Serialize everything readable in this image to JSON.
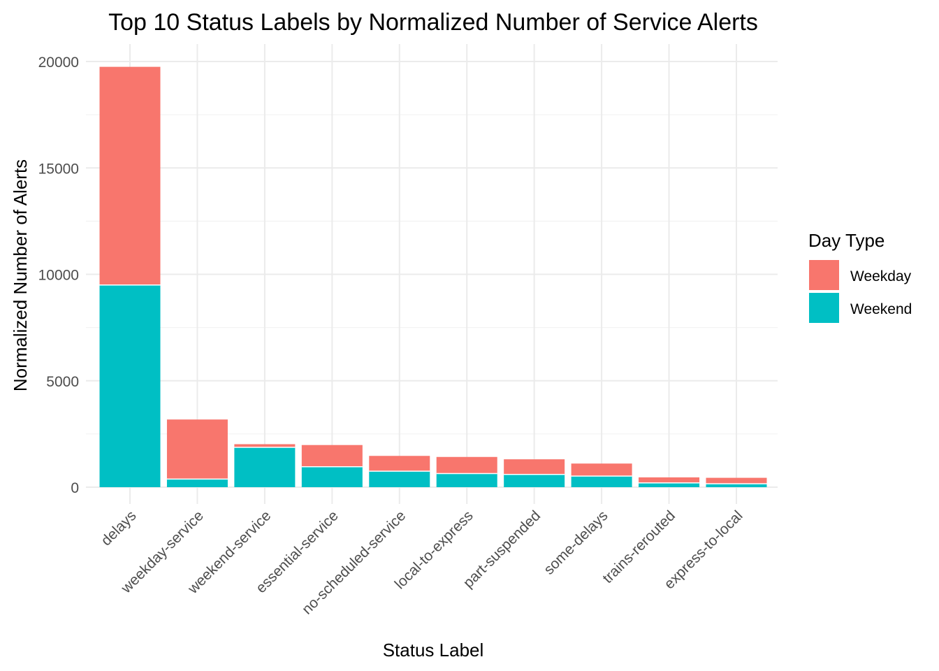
{
  "chart_data": {
    "type": "bar",
    "stacked": true,
    "title": "Top 10 Status Labels by Normalized Number of Service Alerts",
    "xlabel": "Status Label",
    "ylabel": "Normalized Number of Alerts",
    "ylim": [
      0,
      20000
    ],
    "yticks": [
      "0",
      "5000",
      "10000",
      "15000",
      "20000"
    ],
    "grid": true,
    "legend_position": "right",
    "legend_title": "Day Type",
    "categories": [
      "delays",
      "weekday-service",
      "weekend-service",
      "essential-service",
      "no-scheduled-service",
      "local-to-express",
      "part-suspended",
      "some-delays",
      "trains-rerouted",
      "express-to-local"
    ],
    "series": [
      {
        "name": "Weekday",
        "color": "#F8766D",
        "values": [
          10250,
          2800,
          150,
          1020,
          720,
          780,
          710,
          590,
          260,
          280
        ]
      },
      {
        "name": "Weekend",
        "color": "#00BFC4",
        "values": [
          9500,
          380,
          1870,
          960,
          750,
          640,
          600,
          520,
          200,
          160
        ]
      }
    ]
  }
}
